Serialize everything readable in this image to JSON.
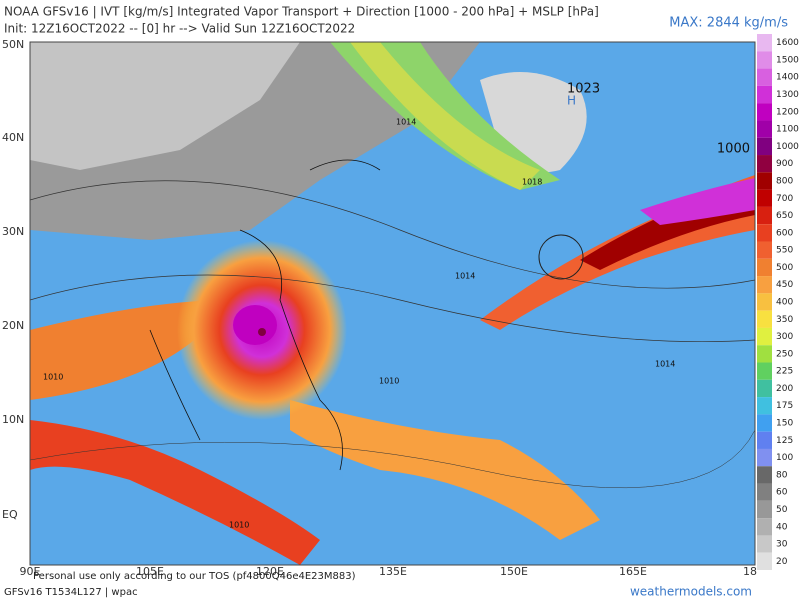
{
  "header": {
    "title": "NOAA GFSv16 | IVT [kg/m/s] Integrated Vapor Transport + Direction [1000 - 200 hPa] + MSLP [hPa]",
    "init": "Init: 12Z16OCT2022 -- [0] hr --> Valid Sun 12Z16OCT2022",
    "max": "MAX: 2844 kg/m/s"
  },
  "lat_labels": [
    "50N",
    "40N",
    "30N",
    "20N",
    "10N",
    "EQ"
  ],
  "lon_labels": [
    "90E",
    "105E",
    "120E",
    "135E",
    "150E",
    "165E",
    "18"
  ],
  "map_labels": [
    "1023",
    "H",
    "1000",
    "1014",
    "1018",
    "1014",
    "1010",
    "1014",
    "1010",
    "1010"
  ],
  "colorbar": {
    "ticks": [
      1600,
      1500,
      1400,
      1300,
      1200,
      1100,
      1000,
      900,
      800,
      700,
      650,
      600,
      550,
      500,
      450,
      400,
      350,
      300,
      250,
      225,
      200,
      175,
      150,
      125,
      100,
      80,
      60,
      50,
      40,
      30,
      20
    ],
    "colors": [
      "#e8b8f0",
      "#e08ce8",
      "#d860e0",
      "#d030d8",
      "#c000c0",
      "#a000a8",
      "#800080",
      "#900040",
      "#a00000",
      "#c00000",
      "#d82010",
      "#e84020",
      "#f06030",
      "#f08030",
      "#f8a040",
      "#f8c040",
      "#f8e040",
      "#e0f040",
      "#a0e040",
      "#60d060",
      "#40c0a0",
      "#40c0e0",
      "#40a0f0",
      "#6080f0",
      "#8090f0",
      "#686868",
      "#808080",
      "#989898",
      "#b0b0b0",
      "#c8c8c8",
      "#e0e0e0"
    ]
  },
  "footer": {
    "tos": "Personal use only according to our TOS (pf4800Q46e4E23M883)",
    "model": "GFSv16 T1534L127 | wpac",
    "site": "weathermodels.com"
  }
}
